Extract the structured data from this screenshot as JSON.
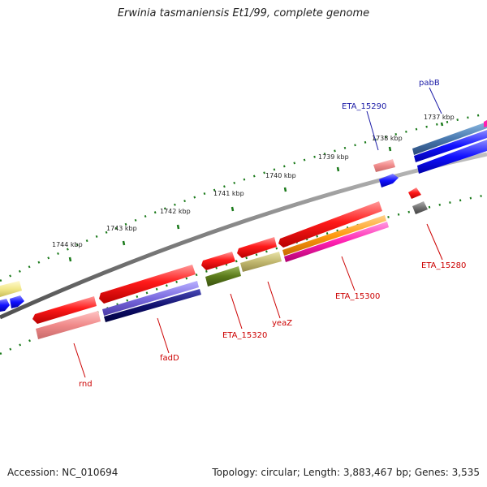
{
  "title": "Erwinia tasmaniensis Et1/99, complete genome",
  "footer": {
    "accession": "Accession: NC_010694",
    "summary": "Topology: circular; Length: 3,883,467 bp; Genes: 3,535"
  },
  "ticks": [
    "1737 kbp",
    "1738 kbp",
    "1739 kbp",
    "1740 kbp",
    "1741 kbp",
    "1742 kbp",
    "1743 kbp",
    "1744 kbp"
  ],
  "gene_labels": {
    "pabB": "pabB",
    "ETA_15290": "ETA_15290",
    "ETA_15280": "ETA_15280",
    "ETA_15300": "ETA_15300",
    "yeaZ": "yeaZ",
    "ETA_15320": "ETA_15320",
    "fadD": "fadD",
    "rnd": "rnd"
  },
  "colors": {
    "label_blue": "#1a1aa6",
    "label_red": "#cc0000",
    "backbone": "#808080",
    "tick": "#1a7a1a",
    "gene_red": "#ff0000",
    "gene_blue": "#0000ff"
  }
}
